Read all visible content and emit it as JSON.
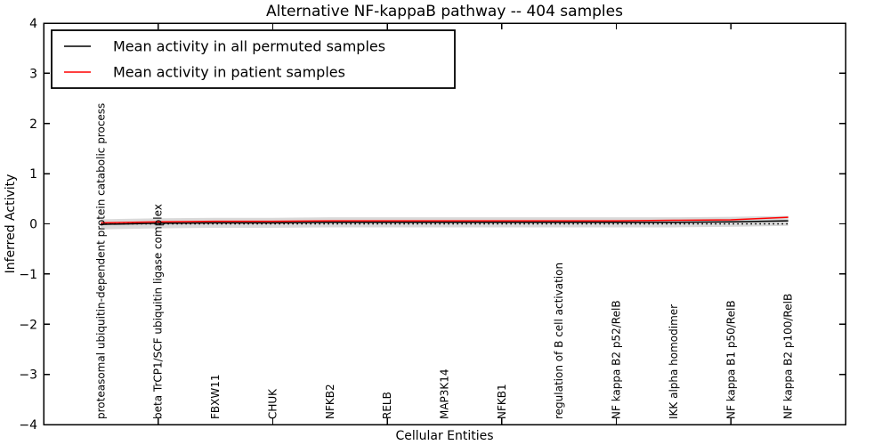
{
  "chart_data": {
    "type": "line",
    "title": "Alternative NF-kappaB pathway -- 404 samples",
    "xlabel": "Cellular Entities",
    "ylabel": "Inferred Activity",
    "xlim": [
      -1,
      13
    ],
    "ylim": [
      -4,
      4
    ],
    "yticks": [
      -4,
      -3,
      -2,
      -1,
      0,
      1,
      2,
      3,
      4
    ],
    "xtick_units": [
      1,
      3,
      5,
      7,
      9,
      11,
      13
    ],
    "grid": false,
    "legend_position": "upper left",
    "categories": [
      "proteasomal ubiquitin-dependent protein catabolic process",
      "beta TrCP1/SCF ubiquitin ligase complex",
      "FBXW11",
      "CHUK",
      "NFKB2",
      "RELB",
      "MAP3K14",
      "NFKB1",
      "regulation of B cell activation",
      "NF kappa B2 p52/RelB",
      "IKK alpha homodimer",
      "NF kappa B1 p50/RelB",
      "NF kappa B2 p100/RelB"
    ],
    "series": [
      {
        "name": "Mean activity in all permuted samples",
        "color": "#000000",
        "values": [
          -0.01,
          0.01,
          0.02,
          0.02,
          0.03,
          0.03,
          0.03,
          0.03,
          0.03,
          0.03,
          0.03,
          0.04,
          0.06
        ]
      },
      {
        "name": "Mean activity in patient samples",
        "color": "#ff0000",
        "values": [
          0.02,
          0.04,
          0.05,
          0.05,
          0.06,
          0.06,
          0.06,
          0.06,
          0.06,
          0.06,
          0.07,
          0.08,
          0.13
        ]
      }
    ],
    "confidence_band": {
      "around_series": 0,
      "half_width": 0.1,
      "color": "#000000",
      "opacity": 0.15
    },
    "zero_line": {
      "y": 0,
      "style": "dotted",
      "color": "#000000"
    }
  },
  "colors": {
    "background": "#ffffff",
    "frame": "#000000"
  }
}
